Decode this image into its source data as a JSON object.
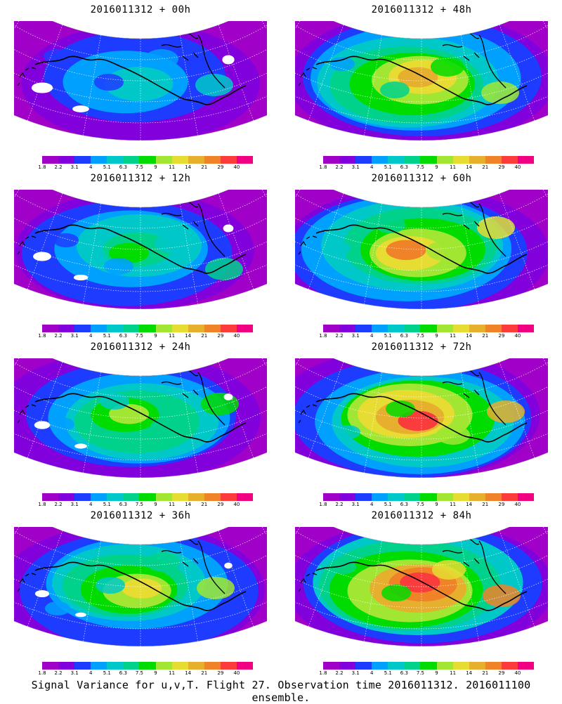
{
  "panels": [
    {
      "title": "2016011312 + 00h",
      "lead_hours": 0,
      "intensity": 0.35
    },
    {
      "title": "2016011312 + 48h",
      "lead_hours": 48,
      "intensity": 0.72
    },
    {
      "title": "2016011312 + 12h",
      "lead_hours": 12,
      "intensity": 0.48
    },
    {
      "title": "2016011312 + 60h",
      "lead_hours": 60,
      "intensity": 0.8
    },
    {
      "title": "2016011312 + 24h",
      "lead_hours": 24,
      "intensity": 0.58
    },
    {
      "title": "2016011312 + 72h",
      "lead_hours": 72,
      "intensity": 0.88
    },
    {
      "title": "2016011312 + 36h",
      "lead_hours": 36,
      "intensity": 0.65
    },
    {
      "title": "2016011312 + 84h",
      "lead_hours": 84,
      "intensity": 0.95
    }
  ],
  "colorbar": {
    "colors": [
      "#a000c8",
      "#8200dc",
      "#1e3cff",
      "#00a0ff",
      "#00c8c8",
      "#00d28c",
      "#00dc00",
      "#a0e632",
      "#e6dc32",
      "#e6af2d",
      "#f08228",
      "#fa3c3c",
      "#f00082"
    ],
    "tick_labels": [
      "1.8",
      "2.2",
      "3.1",
      "4",
      "5.1",
      "6.3",
      "7.5",
      "9",
      "11",
      "14",
      "21",
      "29",
      "40"
    ]
  },
  "caption": "Signal Variance for u,v,T. Flight 27. Observation time 2016011312. 2016011100 ensemble."
}
